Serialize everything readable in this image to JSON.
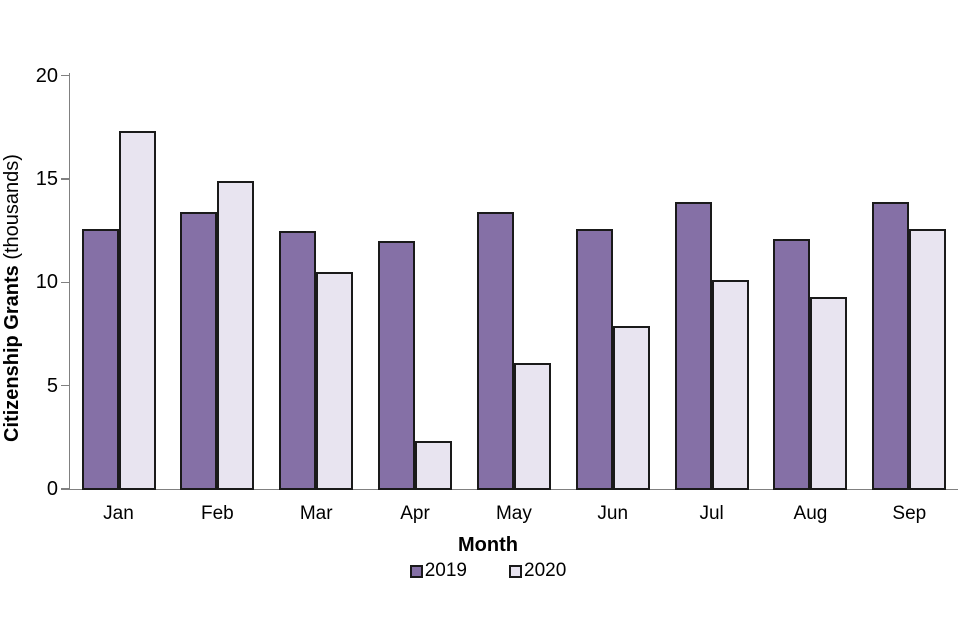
{
  "chart_data": {
    "type": "bar",
    "title": "",
    "categories": [
      "Jan",
      "Feb",
      "Mar",
      "Apr",
      "May",
      "Jun",
      "Jul",
      "Aug",
      "Sep"
    ],
    "series": [
      {
        "name": "2019",
        "values": [
          12.6,
          13.4,
          12.5,
          12.0,
          13.4,
          12.6,
          13.9,
          12.1,
          13.9
        ],
        "fill": "#8570A6",
        "border": "#1a1a1a"
      },
      {
        "name": "2020",
        "values": [
          17.3,
          14.9,
          10.5,
          2.3,
          6.1,
          7.9,
          10.1,
          9.3,
          12.6
        ],
        "fill": "#E8E4F0",
        "border": "#1a1a1a"
      }
    ],
    "xlabel": "Month",
    "ylabel": "Citizenship Grants (thousands)",
    "ylabel_bold": "Citizenship Grants",
    "ylabel_unit": " (thousands)",
    "ylim": [
      0,
      20
    ],
    "yticks": [
      0,
      5,
      10,
      15,
      20
    ],
    "grid": false,
    "legend_position": "bottom",
    "axis_color": "#808080",
    "text_color": "#000000",
    "background": "#FFFFFF"
  }
}
